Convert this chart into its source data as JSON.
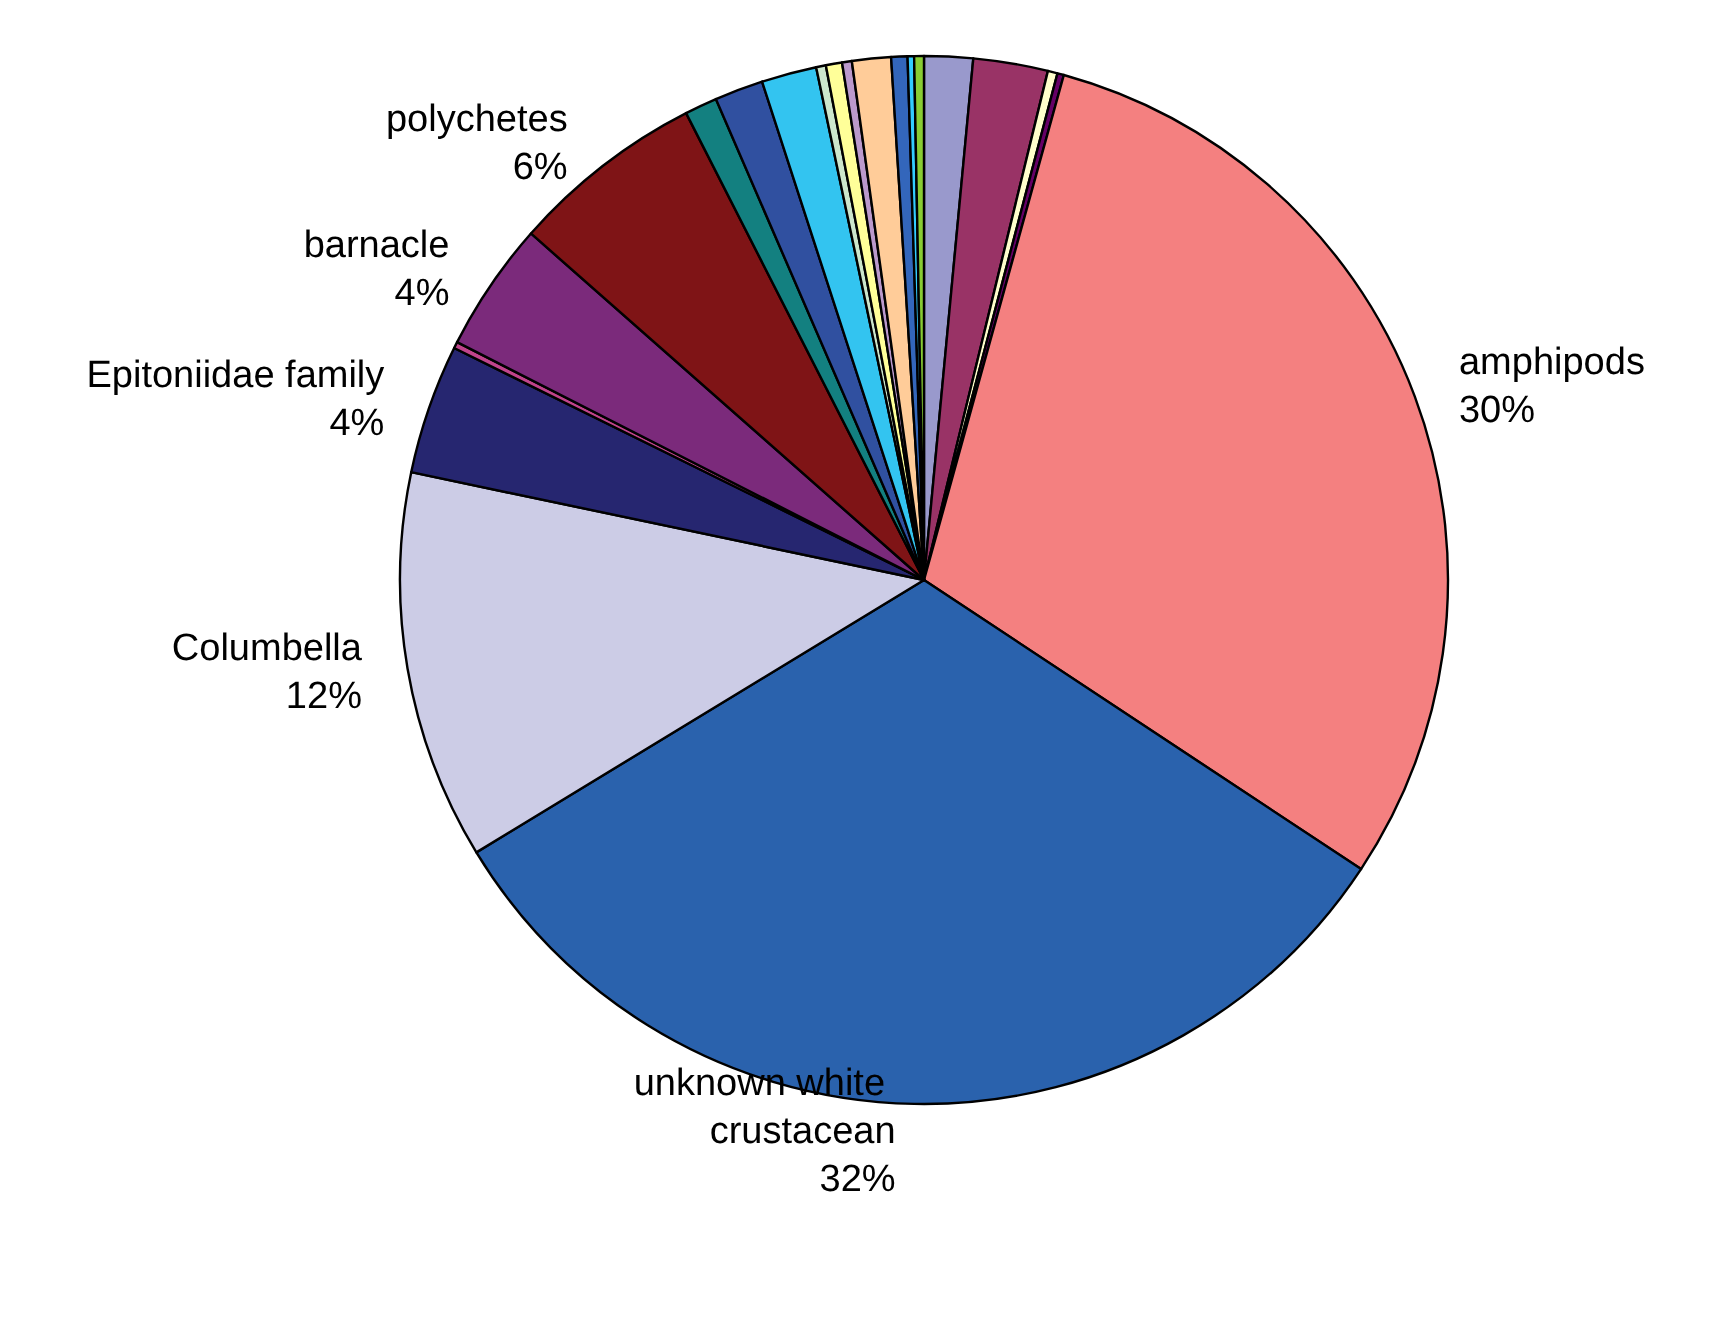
{
  "chart_data": {
    "type": "pie",
    "categories": [
      null,
      null,
      null,
      null,
      "amphipods",
      "unknown white crustacean",
      "Columbella",
      "Epitoniidae family",
      null,
      "barnacle",
      "polychetes",
      null,
      null,
      null,
      null,
      null,
      null,
      null,
      null,
      null,
      null
    ],
    "values": [
      1.5,
      2.3,
      0.3,
      0.2,
      30,
      32,
      12,
      4,
      0.2,
      4,
      6,
      1,
      1.5,
      1.7,
      0.3,
      0.5,
      0.3,
      1.2,
      0.5,
      0.2,
      0.3
    ],
    "value_labels": [
      null,
      null,
      null,
      null,
      "30%",
      "32%",
      "12%",
      "4%",
      null,
      "4%",
      "6%",
      null,
      null,
      null,
      null,
      null,
      null,
      null,
      null,
      null,
      null
    ],
    "colors": [
      "#9999cc",
      "#993366",
      "#ffffcc",
      "#660066",
      "#f48080",
      "#2a62ad",
      "#ccccE6",
      "#262670",
      "#c0448c",
      "#7b2a7b",
      "#7f1416",
      "#138080",
      "#3050a0",
      "#33c4f0",
      "#cce6cc",
      "#ffff99",
      "#bb99cc",
      "#ffcc99",
      "#3366bb",
      "#33ccff",
      "#88cc33"
    ],
    "legend": false
  }
}
